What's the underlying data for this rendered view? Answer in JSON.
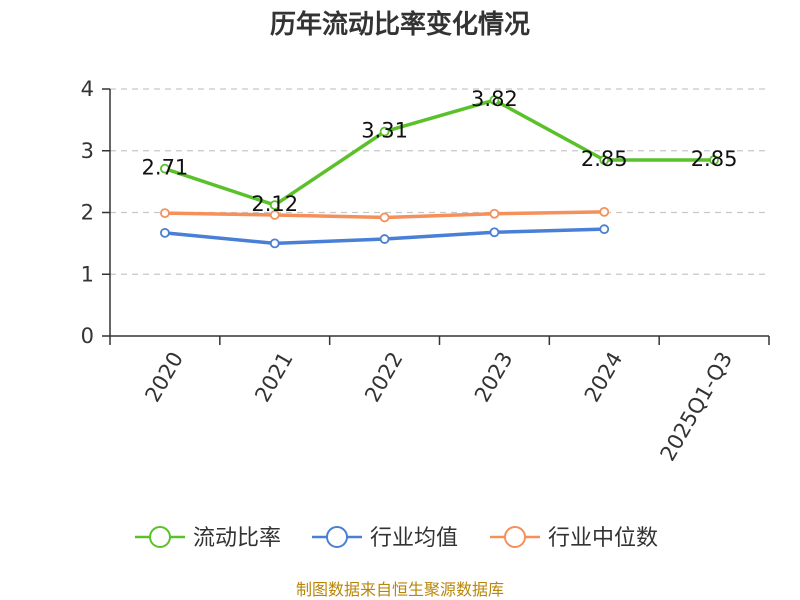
{
  "chart_data": {
    "type": "line",
    "title": "历年流动比率变化情况",
    "categories": [
      "2020",
      "2021",
      "2022",
      "2023",
      "2024",
      "2025Q1-Q3"
    ],
    "ylim": [
      0,
      4
    ],
    "yticks": [
      0,
      1,
      2,
      3,
      4
    ],
    "grid": "horizontal-dashed",
    "legend_position": "bottom",
    "series": [
      {
        "name": "流动比率",
        "color": "#5bc12b",
        "values": [
          2.71,
          2.12,
          3.31,
          3.82,
          2.85,
          2.85
        ],
        "labels": [
          "2.71",
          "2.12",
          "3.31",
          "3.82",
          "2.85",
          "2.85"
        ]
      },
      {
        "name": "行业均值",
        "color": "#4a7fd6",
        "values": [
          1.67,
          1.5,
          1.57,
          1.68,
          1.73,
          null
        ]
      },
      {
        "name": "行业中位数",
        "color": "#f5905a",
        "values": [
          1.99,
          1.96,
          1.92,
          1.98,
          2.01,
          null
        ]
      }
    ],
    "source": "制图数据来自恒生聚源数据库"
  }
}
